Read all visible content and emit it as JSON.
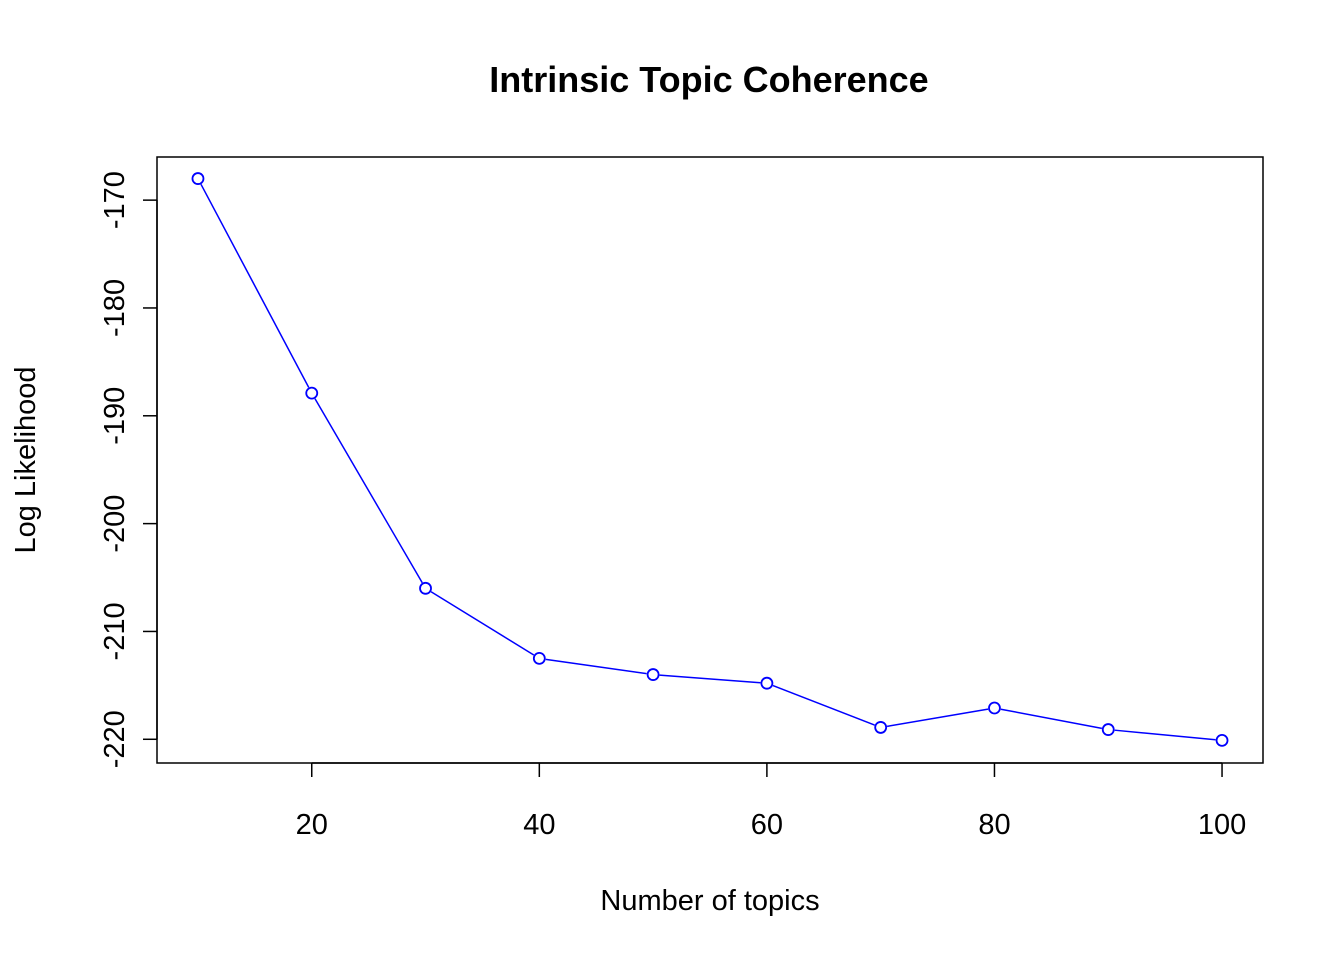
{
  "chart_data": {
    "type": "line",
    "title": "Intrinsic Topic Coherence",
    "xlabel": "Number of topics",
    "ylabel": "Log Likelihood",
    "x": [
      10,
      20,
      30,
      40,
      50,
      60,
      70,
      80,
      90,
      100
    ],
    "series": [
      {
        "values": [
          -168.0,
          -187.9,
          -206.0,
          -212.5,
          -214.0,
          -214.8,
          -218.9,
          -217.1,
          -219.1,
          -220.1
        ],
        "color": "#0000FF",
        "marker": "open-circle"
      }
    ],
    "xticks": [
      20,
      40,
      60,
      80,
      100
    ],
    "xtick_labels": [
      "20",
      "40",
      "60",
      "80",
      "100"
    ],
    "yticks": [
      -170,
      -180,
      -190,
      -200,
      -210,
      -220
    ],
    "ytick_labels": [
      "-170",
      "-180",
      "-190",
      "-200",
      "-210",
      "-220"
    ],
    "xlim": [
      6.4,
      103.6
    ],
    "ylim": [
      -222.2,
      -166.0
    ],
    "grid": false,
    "legend": "none"
  }
}
